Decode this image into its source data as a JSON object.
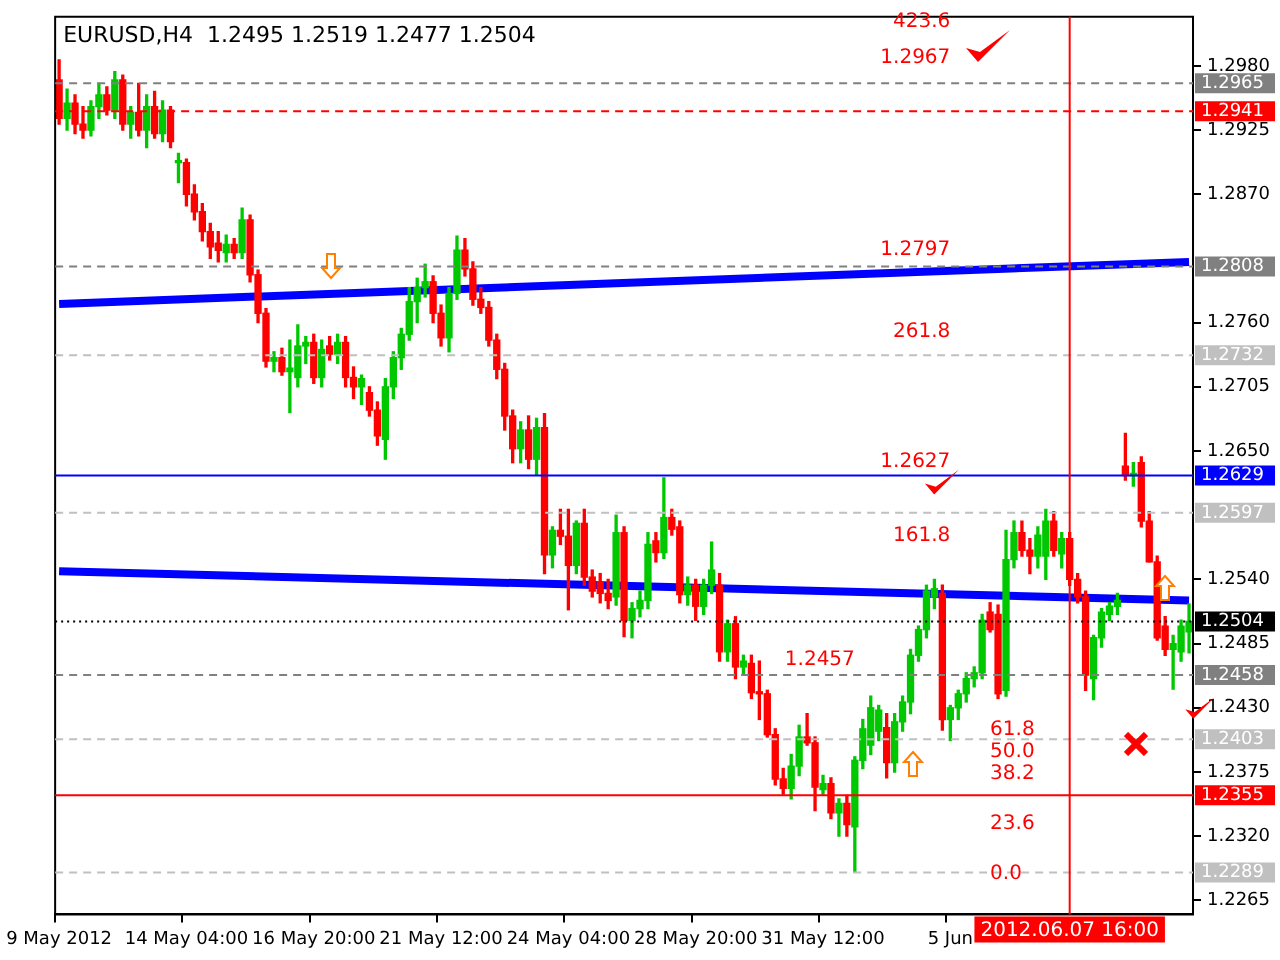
{
  "chart_data": {
    "type": "candlestick",
    "title": "EURUSD,H4  1.2495 1.2519 1.2477 1.2504",
    "categories": [
      "9 May 2012",
      null,
      null,
      null,
      null,
      null,
      null,
      null,
      null,
      null,
      null,
      null,
      null,
      null,
      null,
      null,
      "14 May 04:00",
      null,
      null,
      null,
      null,
      null,
      null,
      null,
      null,
      null,
      null,
      null,
      null,
      null,
      null,
      null,
      "16 May 20:00",
      null,
      null,
      null,
      null,
      null,
      null,
      null,
      null,
      null,
      null,
      null,
      null,
      null,
      null,
      null,
      "21 May 12:00",
      null,
      null,
      null,
      null,
      null,
      null,
      null,
      null,
      null,
      null,
      null,
      null,
      null,
      null,
      null,
      "24 May 04:00",
      null,
      null,
      null,
      null,
      null,
      null,
      null,
      null,
      null,
      null,
      null,
      null,
      null,
      null,
      null,
      "28 May 20:00",
      null,
      null,
      null,
      null,
      null,
      null,
      null,
      null,
      null,
      null,
      null,
      null,
      null,
      null,
      null,
      "31 May 12:00",
      null,
      null,
      null,
      null,
      null,
      null,
      null,
      null,
      null,
      null,
      null,
      null,
      null,
      null,
      null,
      "5 Jun",
      null,
      null,
      null,
      null,
      null,
      null,
      null,
      null,
      null,
      null,
      null,
      null,
      null,
      null,
      null,
      null,
      null,
      null,
      null,
      null,
      null,
      null,
      null,
      null,
      null,
      null,
      null,
      null,
      null,
      null
    ],
    "ohlc": [
      [
        1.2968,
        1.2985,
        1.293,
        1.2935
      ],
      [
        1.2935,
        1.296,
        1.2925,
        1.2948
      ],
      [
        1.2948,
        1.2955,
        1.2922,
        1.293
      ],
      [
        1.293,
        1.2945,
        1.2918,
        1.2925
      ],
      [
        1.2925,
        1.295,
        1.292,
        1.2945
      ],
      [
        1.2945,
        1.2965,
        1.2935,
        1.2955
      ],
      [
        1.2955,
        1.2962,
        1.2938,
        1.2942
      ],
      [
        1.2942,
        1.2975,
        1.2935,
        1.2968
      ],
      [
        1.2968,
        1.2972,
        1.2925,
        1.293
      ],
      [
        1.293,
        1.2945,
        1.2918,
        1.294
      ],
      [
        1.294,
        1.2965,
        1.292,
        1.2925
      ],
      [
        1.2925,
        1.2955,
        1.291,
        1.2945
      ],
      [
        1.2945,
        1.2958,
        1.2918,
        1.2922
      ],
      [
        1.2922,
        1.295,
        1.2915,
        1.2942
      ],
      [
        1.2942,
        1.2945,
        1.291,
        1.2915
      ],
      [
        1.2897,
        1.2905,
        1.288,
        1.2897
      ],
      [
        1.2897,
        1.29,
        1.286,
        1.287
      ],
      [
        1.287,
        1.2878,
        1.2848,
        1.2855
      ],
      [
        1.2855,
        1.2862,
        1.283,
        1.2838
      ],
      [
        1.2838,
        1.2845,
        1.2815,
        1.2825
      ],
      [
        1.2828,
        1.2838,
        1.2812,
        1.2822
      ],
      [
        1.282,
        1.2835,
        1.2812,
        1.2827
      ],
      [
        1.2827,
        1.2832,
        1.2815,
        1.282
      ],
      [
        1.282,
        1.2858,
        1.2815,
        1.2848
      ],
      [
        1.2848,
        1.2852,
        1.2795,
        1.2801
      ],
      [
        1.2801,
        1.2805,
        1.276,
        1.2768
      ],
      [
        1.2768,
        1.2772,
        1.2722,
        1.2727
      ],
      [
        1.2727,
        1.2735,
        1.2718,
        1.273
      ],
      [
        1.273,
        1.2738,
        1.2715,
        1.2718
      ],
      [
        1.2718,
        1.2745,
        1.2683,
        1.2721
      ],
      [
        1.2713,
        1.2758,
        1.2705,
        1.274
      ],
      [
        1.274,
        1.2748,
        1.2725,
        1.2743
      ],
      [
        1.2743,
        1.275,
        1.2708,
        1.2713
      ],
      [
        1.2713,
        1.2745,
        1.2705,
        1.2737
      ],
      [
        1.274,
        1.2748,
        1.2728,
        1.2733
      ],
      [
        1.2733,
        1.275,
        1.2725,
        1.2743
      ],
      [
        1.2743,
        1.2748,
        1.2705,
        1.2713
      ],
      [
        1.2713,
        1.2722,
        1.2695,
        1.2705
      ],
      [
        1.2705,
        1.2715,
        1.269,
        1.2712
      ],
      [
        1.27,
        1.2705,
        1.268,
        1.2685
      ],
      [
        1.2685,
        1.2692,
        1.2655,
        1.2663
      ],
      [
        1.266,
        1.2712,
        1.2643,
        1.2705
      ],
      [
        1.2705,
        1.2735,
        1.2695,
        1.273
      ],
      [
        1.273,
        1.2755,
        1.272,
        1.275
      ],
      [
        1.275,
        1.279,
        1.2745,
        1.2778
      ],
      [
        1.2778,
        1.2798,
        1.276,
        1.279
      ],
      [
        1.279,
        1.281,
        1.2782,
        1.2795
      ],
      [
        1.2795,
        1.28,
        1.276,
        1.2768
      ],
      [
        1.2768,
        1.2775,
        1.274,
        1.2747
      ],
      [
        1.2747,
        1.279,
        1.2735,
        1.2785
      ],
      [
        1.2785,
        1.2834,
        1.278,
        1.2822
      ],
      [
        1.2822,
        1.2832,
        1.28,
        1.2806
      ],
      [
        1.2806,
        1.2812,
        1.2775,
        1.278
      ],
      [
        1.278,
        1.279,
        1.2768,
        1.2773
      ],
      [
        1.2773,
        1.2778,
        1.274,
        1.2745
      ],
      [
        1.2745,
        1.275,
        1.2712,
        1.272
      ],
      [
        1.272,
        1.2725,
        1.2668,
        1.268
      ],
      [
        1.268,
        1.2685,
        1.264,
        1.2652
      ],
      [
        1.2652,
        1.2675,
        1.264,
        1.2668
      ],
      [
        1.2668,
        1.268,
        1.2635,
        1.2643
      ],
      [
        1.2643,
        1.2678,
        1.263,
        1.267
      ],
      [
        1.267,
        1.2682,
        1.2545,
        1.2561
      ],
      [
        1.2561,
        1.2585,
        1.255,
        1.2582
      ],
      [
        1.2582,
        1.26,
        1.257,
        1.2577
      ],
      [
        1.2577,
        1.26,
        1.2514,
        1.2552
      ],
      [
        1.2552,
        1.259,
        1.2545,
        1.2588
      ],
      [
        1.2588,
        1.26,
        1.2535,
        1.2542
      ],
      [
        1.2542,
        1.2548,
        1.2525,
        1.253
      ],
      [
        1.2538,
        1.2545,
        1.252,
        1.2528
      ],
      [
        1.2528,
        1.254,
        1.2515,
        1.2522
      ],
      [
        1.2525,
        1.2595,
        1.2518,
        1.258
      ],
      [
        1.258,
        1.2585,
        1.2491,
        1.2505
      ],
      [
        1.2505,
        1.252,
        1.249,
        1.2515
      ],
      [
        1.2515,
        1.253,
        1.2508,
        1.2522
      ],
      [
        1.2522,
        1.258,
        1.2515,
        1.257
      ],
      [
        1.2573,
        1.258,
        1.2555,
        1.2563
      ],
      [
        1.2563,
        1.2627,
        1.2558,
        1.2593
      ],
      [
        1.2593,
        1.26,
        1.2578,
        1.2583
      ],
      [
        1.2585,
        1.259,
        1.252,
        1.2527
      ],
      [
        1.2527,
        1.2542,
        1.2518,
        1.2535
      ],
      [
        1.2535,
        1.254,
        1.2505,
        1.2517
      ],
      [
        1.2517,
        1.254,
        1.251,
        1.2535
      ],
      [
        1.2535,
        1.2572,
        1.2528,
        1.2548
      ],
      [
        1.2535,
        1.2545,
        1.247,
        1.2478
      ],
      [
        1.2478,
        1.2505,
        1.247,
        1.2502
      ],
      [
        1.2502,
        1.2508,
        1.2455,
        1.2465
      ],
      [
        1.2465,
        1.2475,
        1.2458,
        1.247
      ],
      [
        1.2468,
        1.2475,
        1.2438,
        1.2443
      ],
      [
        1.2443,
        1.247,
        1.242,
        1.2442
      ],
      [
        1.2442,
        1.2445,
        1.2405,
        1.2407
      ],
      [
        1.2407,
        1.2412,
        1.2364,
        1.2369
      ],
      [
        1.2369,
        1.2378,
        1.2356,
        1.2361
      ],
      [
        1.2361,
        1.239,
        1.2352,
        1.238
      ],
      [
        1.238,
        1.2415,
        1.2372,
        1.2405
      ],
      [
        1.2405,
        1.2425,
        1.2398,
        1.24
      ],
      [
        1.24,
        1.2405,
        1.2342,
        1.2362
      ],
      [
        1.236,
        1.2372,
        1.2355,
        1.2365
      ],
      [
        1.2365,
        1.237,
        1.2335,
        1.234
      ],
      [
        1.234,
        1.2352,
        1.232,
        1.2348
      ],
      [
        1.2348,
        1.2355,
        1.232,
        1.233
      ],
      [
        1.2328,
        1.2388,
        1.2289,
        1.2385
      ],
      [
        1.2385,
        1.242,
        1.2378,
        1.2412
      ],
      [
        1.2398,
        1.244,
        1.239,
        1.243
      ],
      [
        1.241,
        1.2432,
        1.2402,
        1.2428
      ],
      [
        1.2413,
        1.2425,
        1.237,
        1.2383
      ],
      [
        1.2383,
        1.2425,
        1.2375,
        1.2418
      ],
      [
        1.2418,
        1.244,
        1.241,
        1.2435
      ],
      [
        1.2435,
        1.248,
        1.2425,
        1.2475
      ],
      [
        1.2475,
        1.25,
        1.247,
        1.2497
      ],
      [
        1.2497,
        1.2535,
        1.249,
        1.253
      ],
      [
        1.2525,
        1.254,
        1.2515,
        1.2532
      ],
      [
        1.2528,
        1.2535,
        1.2411,
        1.242
      ],
      [
        1.242,
        1.2432,
        1.2402,
        1.243
      ],
      [
        1.243,
        1.2445,
        1.242,
        1.2442
      ],
      [
        1.2442,
        1.246,
        1.2435,
        1.2455
      ],
      [
        1.2455,
        1.2465,
        1.2448,
        1.246
      ],
      [
        1.246,
        1.251,
        1.2455,
        1.2505
      ],
      [
        1.2512,
        1.252,
        1.2495,
        1.2497
      ],
      [
        1.251,
        1.2518,
        1.2438,
        1.2442
      ],
      [
        1.2445,
        1.2582,
        1.244,
        1.2557
      ],
      [
        1.2557,
        1.259,
        1.255,
        1.258
      ],
      [
        1.258,
        1.259,
        1.256,
        1.2565
      ],
      [
        1.2565,
        1.2575,
        1.2545,
        1.256
      ],
      [
        1.256,
        1.2585,
        1.255,
        1.2578
      ],
      [
        1.256,
        1.26,
        1.254,
        1.259
      ],
      [
        1.259,
        1.2598,
        1.256,
        1.2565
      ],
      [
        1.2562,
        1.258,
        1.255,
        1.2575
      ],
      [
        1.2575,
        1.258,
        1.2535,
        1.254
      ],
      [
        1.254,
        1.2545,
        1.252,
        1.2525
      ],
      [
        1.2525,
        1.253,
        1.2445,
        1.2458
      ],
      [
        1.2455,
        1.2492,
        1.2437,
        1.249
      ],
      [
        1.249,
        1.2515,
        1.2482,
        1.2512
      ],
      [
        1.251,
        1.252,
        1.2505,
        1.2517
      ],
      [
        1.2517,
        1.2528,
        1.251,
        1.2522
      ],
      [
        1.2637,
        1.2665,
        1.2625,
        1.2629
      ],
      [
        1.2629,
        1.264,
        1.262,
        1.2629
      ],
      [
        1.264,
        1.2645,
        1.2585,
        1.259
      ],
      [
        1.259,
        1.2598,
        1.2555,
        1.2555
      ],
      [
        1.2555,
        1.256,
        1.2488,
        1.249
      ],
      [
        1.25,
        1.2508,
        1.2475,
        1.248
      ],
      [
        1.248,
        1.2492,
        1.2446,
        1.2485
      ],
      [
        1.2478,
        1.2505,
        1.247,
        1.25
      ],
      [
        1.2495,
        1.2519,
        1.2477,
        1.2504
      ]
    ],
    "series": [
      {
        "type": "line",
        "color": "#0000ff",
        "values": [
          1.2776,
          null,
          null,
          null,
          null,
          null,
          null,
          null,
          null,
          null,
          null,
          null,
          null,
          null,
          null,
          null,
          null,
          null,
          null,
          null,
          null,
          null,
          null,
          null,
          null,
          null,
          null,
          null,
          null,
          null,
          null,
          null,
          null,
          null,
          null,
          null,
          null,
          null,
          null,
          null,
          null,
          null,
          null,
          null,
          null,
          null,
          null,
          null,
          null,
          null,
          null,
          null,
          null,
          null,
          null,
          null,
          null,
          null,
          null,
          null,
          null,
          null,
          null,
          null,
          null,
          null,
          null,
          null,
          null,
          null,
          null,
          null,
          null,
          null,
          null,
          null,
          null,
          null,
          null,
          null,
          null,
          null,
          null,
          null,
          null,
          null,
          null,
          null,
          null,
          null,
          null,
          null,
          null,
          null,
          null,
          null,
          null,
          null,
          null,
          null,
          null,
          null,
          null,
          null,
          null,
          null,
          null,
          null,
          null,
          null,
          null,
          null,
          null,
          null,
          null,
          null,
          null,
          null,
          null,
          null,
          null,
          null,
          null,
          null,
          null,
          null,
          null,
          null,
          null,
          null,
          null,
          null,
          null,
          null,
          null,
          null,
          null,
          null,
          null,
          null,
          null,
          null,
          1.2812
        ]
      },
      {
        "type": "line",
        "color": "#0000ff",
        "values": [
          1.2547,
          null,
          null,
          null,
          null,
          null,
          null,
          null,
          null,
          null,
          null,
          null,
          null,
          null,
          null,
          null,
          null,
          null,
          null,
          null,
          null,
          null,
          null,
          null,
          null,
          null,
          null,
          null,
          null,
          null,
          null,
          null,
          null,
          null,
          null,
          null,
          null,
          null,
          null,
          null,
          null,
          null,
          null,
          null,
          null,
          null,
          null,
          null,
          null,
          null,
          null,
          null,
          null,
          null,
          null,
          null,
          null,
          null,
          null,
          null,
          null,
          null,
          null,
          null,
          null,
          null,
          null,
          null,
          null,
          null,
          null,
          null,
          null,
          null,
          null,
          null,
          null,
          null,
          null,
          null,
          null,
          null,
          null,
          null,
          null,
          null,
          null,
          null,
          null,
          null,
          null,
          null,
          null,
          null,
          null,
          null,
          null,
          null,
          null,
          null,
          null,
          null,
          null,
          null,
          null,
          null,
          null,
          null,
          null,
          null,
          null,
          null,
          null,
          null,
          null,
          null,
          null,
          null,
          null,
          null,
          null,
          null,
          null,
          null,
          null,
          null,
          null,
          null,
          null,
          null,
          null,
          null,
          null,
          null,
          null,
          null,
          null,
          null,
          null,
          null,
          null,
          null,
          1.2522
        ]
      }
    ],
    "ylim": [
      1.2253,
      1.3022
    ],
    "yticks": [
      {
        "value": 1.2265,
        "label": "1.2265"
      },
      {
        "value": 1.232,
        "label": "1.2320"
      },
      {
        "value": 1.2375,
        "label": "1.2375"
      },
      {
        "value": 1.243,
        "label": "1.2430"
      },
      {
        "value": 1.2485,
        "label": "1.2485"
      },
      {
        "value": 1.254,
        "label": "1.2540"
      },
      {
        "value": 1.265,
        "label": "1.2650"
      },
      {
        "value": 1.2705,
        "label": "1.2705"
      },
      {
        "value": 1.276,
        "label": "1.2760"
      },
      {
        "value": 1.287,
        "label": "1.2870"
      },
      {
        "value": 1.2925,
        "label": "1.2925"
      },
      {
        "value": 1.298,
        "label": "1.2980"
      }
    ],
    "ref_lines": [
      {
        "axis": "y",
        "value": 1.2965,
        "label": "1.2965",
        "color": "#808080",
        "line_style": "dashed"
      },
      {
        "axis": "y",
        "value": 1.2941,
        "label": "1.2941",
        "color": "#ff0000",
        "line_style": "dashed"
      },
      {
        "axis": "y",
        "value": 1.2808,
        "label": "1.2808",
        "color": "#808080",
        "line_style": "dashed"
      },
      {
        "axis": "y",
        "value": 1.2732,
        "label": "1.2732",
        "color": "#c0c0c0",
        "line_style": "dashed"
      },
      {
        "axis": "y",
        "value": 1.2629,
        "label": "1.2629",
        "color": "#0000ff",
        "line_style": "solid"
      },
      {
        "axis": "y",
        "value": 1.2597,
        "label": "1.2597",
        "color": "#c0c0c0",
        "line_style": "dashed"
      },
      {
        "axis": "y",
        "value": 1.2504,
        "label": "1.2504",
        "color": "#000000",
        "line_style": "dotted"
      },
      {
        "axis": "y",
        "value": 1.2458,
        "label": "1.2458",
        "color": "#808080",
        "line_style": "dashed"
      },
      {
        "axis": "y",
        "value": 1.2403,
        "label": "1.2403",
        "color": "#c0c0c0",
        "line_style": "dashed"
      },
      {
        "axis": "y",
        "value": 1.2355,
        "label": "1.2355",
        "color": "#ff0000",
        "line_style": "solid"
      },
      {
        "axis": "y",
        "value": 1.2289,
        "label": "1.2289",
        "color": "#c0c0c0",
        "line_style": "dashed"
      }
    ],
    "annotations": [
      "423.6",
      "1.2967",
      "1.2797",
      "261.8",
      "1.2627",
      "161.8",
      "1.2457",
      "61.8",
      "50.0",
      "38.2",
      "23.6",
      "0.0",
      "2012.06.07 16:00"
    ],
    "marker": "none",
    "grid": false
  }
}
